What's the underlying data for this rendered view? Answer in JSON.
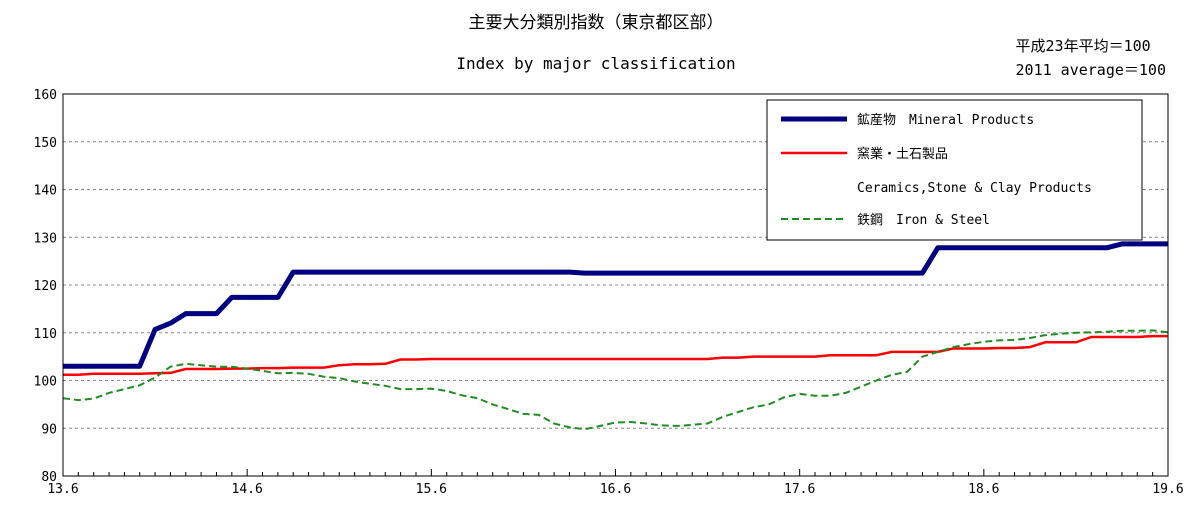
{
  "header": {
    "title_jp": "主要大分類別指数（東京都区部）",
    "title_en": "Index by major classification",
    "base_note_jp": "平成23年平均＝100",
    "base_note_en": "2011 average＝100"
  },
  "chart_data": {
    "type": "line",
    "title": "主要大分類別指数（東京都区部）",
    "subtitle": "Index by major classification",
    "x_ticks": [
      "13.6",
      "14.6",
      "15.6",
      "16.6",
      "17.6",
      "18.6",
      "19.6"
    ],
    "xlim": [
      "2013-06",
      "2019-06"
    ],
    "ylim": [
      80,
      160
    ],
    "y_ticks": [
      80,
      90,
      100,
      110,
      120,
      130,
      140,
      150,
      160
    ],
    "grid": "horizontal dashed",
    "legend_position": "top-right",
    "series": [
      {
        "name": "鉱産物　Mineral Products",
        "color": "#000080",
        "style": "solid-thick",
        "points": [
          [
            "2013-06",
            103.0
          ],
          [
            "2013-07",
            103.0
          ],
          [
            "2013-08",
            103.0
          ],
          [
            "2013-09",
            103.0
          ],
          [
            "2013-10",
            103.0
          ],
          [
            "2013-11",
            103.0
          ],
          [
            "2013-12",
            110.7
          ],
          [
            "2014-01",
            112.0
          ],
          [
            "2014-02",
            114.0
          ],
          [
            "2014-03",
            114.0
          ],
          [
            "2014-04",
            114.0
          ],
          [
            "2014-05",
            117.4
          ],
          [
            "2014-06",
            117.4
          ],
          [
            "2014-07",
            117.4
          ],
          [
            "2014-08",
            117.4
          ],
          [
            "2014-09",
            122.7
          ],
          [
            "2014-10",
            122.7
          ],
          [
            "2014-11",
            122.7
          ],
          [
            "2014-12",
            122.7
          ],
          [
            "2015-01",
            122.7
          ],
          [
            "2015-02",
            122.7
          ],
          [
            "2015-03",
            122.7
          ],
          [
            "2015-04",
            122.7
          ],
          [
            "2015-05",
            122.7
          ],
          [
            "2015-06",
            122.7
          ],
          [
            "2015-07",
            122.7
          ],
          [
            "2015-08",
            122.7
          ],
          [
            "2015-09",
            122.7
          ],
          [
            "2015-10",
            122.7
          ],
          [
            "2015-11",
            122.7
          ],
          [
            "2015-12",
            122.7
          ],
          [
            "2016-01",
            122.7
          ],
          [
            "2016-02",
            122.7
          ],
          [
            "2016-03",
            122.7
          ],
          [
            "2016-04",
            122.5
          ],
          [
            "2016-05",
            122.5
          ],
          [
            "2016-06",
            122.5
          ],
          [
            "2016-07",
            122.5
          ],
          [
            "2016-08",
            122.5
          ],
          [
            "2016-09",
            122.5
          ],
          [
            "2016-10",
            122.5
          ],
          [
            "2016-11",
            122.5
          ],
          [
            "2016-12",
            122.5
          ],
          [
            "2017-01",
            122.5
          ],
          [
            "2017-02",
            122.5
          ],
          [
            "2017-03",
            122.5
          ],
          [
            "2017-04",
            122.5
          ],
          [
            "2017-05",
            122.5
          ],
          [
            "2017-06",
            122.5
          ],
          [
            "2017-07",
            122.5
          ],
          [
            "2017-08",
            122.5
          ],
          [
            "2017-09",
            122.5
          ],
          [
            "2017-10",
            122.5
          ],
          [
            "2017-11",
            122.5
          ],
          [
            "2017-12",
            122.5
          ],
          [
            "2018-01",
            122.5
          ],
          [
            "2018-02",
            122.5
          ],
          [
            "2018-03",
            127.8
          ],
          [
            "2018-04",
            127.8
          ],
          [
            "2018-05",
            127.8
          ],
          [
            "2018-06",
            127.8
          ],
          [
            "2018-07",
            127.8
          ],
          [
            "2018-08",
            127.8
          ],
          [
            "2018-09",
            127.8
          ],
          [
            "2018-10",
            127.8
          ],
          [
            "2018-11",
            127.8
          ],
          [
            "2018-12",
            127.8
          ],
          [
            "2019-01",
            127.8
          ],
          [
            "2019-02",
            127.8
          ],
          [
            "2019-03",
            128.6
          ],
          [
            "2019-04",
            128.6
          ],
          [
            "2019-05",
            128.6
          ],
          [
            "2019-06",
            128.6
          ]
        ]
      },
      {
        "name": "窯業・土石製品",
        "name_en": "Ceramics,Stone & Clay Products",
        "color": "#ff0000",
        "style": "solid",
        "points": [
          [
            "2013-06",
            101.2
          ],
          [
            "2013-07",
            101.2
          ],
          [
            "2013-08",
            101.4
          ],
          [
            "2013-09",
            101.4
          ],
          [
            "2013-10",
            101.4
          ],
          [
            "2013-11",
            101.4
          ],
          [
            "2013-12",
            101.5
          ],
          [
            "2014-01",
            101.6
          ],
          [
            "2014-02",
            102.4
          ],
          [
            "2014-03",
            102.4
          ],
          [
            "2014-04",
            102.4
          ],
          [
            "2014-05",
            102.5
          ],
          [
            "2014-06",
            102.5
          ],
          [
            "2014-07",
            102.6
          ],
          [
            "2014-08",
            102.6
          ],
          [
            "2014-09",
            102.7
          ],
          [
            "2014-10",
            102.7
          ],
          [
            "2014-11",
            102.7
          ],
          [
            "2014-12",
            103.2
          ],
          [
            "2015-01",
            103.4
          ],
          [
            "2015-02",
            103.4
          ],
          [
            "2015-03",
            103.5
          ],
          [
            "2015-04",
            104.4
          ],
          [
            "2015-05",
            104.4
          ],
          [
            "2015-06",
            104.5
          ],
          [
            "2015-07",
            104.5
          ],
          [
            "2015-08",
            104.5
          ],
          [
            "2015-09",
            104.5
          ],
          [
            "2015-10",
            104.5
          ],
          [
            "2015-11",
            104.5
          ],
          [
            "2015-12",
            104.5
          ],
          [
            "2016-01",
            104.5
          ],
          [
            "2016-02",
            104.5
          ],
          [
            "2016-03",
            104.5
          ],
          [
            "2016-04",
            104.5
          ],
          [
            "2016-05",
            104.5
          ],
          [
            "2016-06",
            104.5
          ],
          [
            "2016-07",
            104.5
          ],
          [
            "2016-08",
            104.5
          ],
          [
            "2016-09",
            104.5
          ],
          [
            "2016-10",
            104.5
          ],
          [
            "2016-11",
            104.5
          ],
          [
            "2016-12",
            104.5
          ],
          [
            "2017-01",
            104.8
          ],
          [
            "2017-02",
            104.8
          ],
          [
            "2017-03",
            105.0
          ],
          [
            "2017-04",
            105.0
          ],
          [
            "2017-05",
            105.0
          ],
          [
            "2017-06",
            105.0
          ],
          [
            "2017-07",
            105.0
          ],
          [
            "2017-08",
            105.3
          ],
          [
            "2017-09",
            105.3
          ],
          [
            "2017-10",
            105.3
          ],
          [
            "2017-11",
            105.3
          ],
          [
            "2017-12",
            106.0
          ],
          [
            "2018-01",
            106.0
          ],
          [
            "2018-02",
            106.0
          ],
          [
            "2018-03",
            106.0
          ],
          [
            "2018-04",
            106.7
          ],
          [
            "2018-05",
            106.7
          ],
          [
            "2018-06",
            106.7
          ],
          [
            "2018-07",
            106.8
          ],
          [
            "2018-08",
            106.8
          ],
          [
            "2018-09",
            107.0
          ],
          [
            "2018-10",
            108.0
          ],
          [
            "2018-11",
            108.0
          ],
          [
            "2018-12",
            108.0
          ],
          [
            "2019-01",
            109.1
          ],
          [
            "2019-02",
            109.1
          ],
          [
            "2019-03",
            109.1
          ],
          [
            "2019-04",
            109.1
          ],
          [
            "2019-05",
            109.3
          ],
          [
            "2019-06",
            109.3
          ]
        ]
      },
      {
        "name": "鉄鋼　Iron & Steel",
        "color": "#228B22",
        "style": "dashed",
        "points": [
          [
            "2013-06",
            96.3
          ],
          [
            "2013-07",
            95.9
          ],
          [
            "2013-08",
            96.2
          ],
          [
            "2013-09",
            97.4
          ],
          [
            "2013-10",
            98.2
          ],
          [
            "2013-11",
            99.0
          ],
          [
            "2013-12",
            100.6
          ],
          [
            "2014-01",
            102.9
          ],
          [
            "2014-02",
            103.5
          ],
          [
            "2014-03",
            103.2
          ],
          [
            "2014-04",
            102.9
          ],
          [
            "2014-05",
            102.9
          ],
          [
            "2014-06",
            102.5
          ],
          [
            "2014-07",
            102.0
          ],
          [
            "2014-08",
            101.5
          ],
          [
            "2014-09",
            101.6
          ],
          [
            "2014-10",
            101.4
          ],
          [
            "2014-11",
            100.8
          ],
          [
            "2014-12",
            100.5
          ],
          [
            "2015-01",
            99.8
          ],
          [
            "2015-02",
            99.3
          ],
          [
            "2015-03",
            98.9
          ],
          [
            "2015-04",
            98.2
          ],
          [
            "2015-05",
            98.2
          ],
          [
            "2015-06",
            98.3
          ],
          [
            "2015-07",
            97.8
          ],
          [
            "2015-08",
            96.9
          ],
          [
            "2015-09",
            96.3
          ],
          [
            "2015-10",
            95.0
          ],
          [
            "2015-11",
            94.0
          ],
          [
            "2015-12",
            93.0
          ],
          [
            "2016-01",
            92.8
          ],
          [
            "2016-02",
            91.0
          ],
          [
            "2016-03",
            90.2
          ],
          [
            "2016-04",
            89.8
          ],
          [
            "2016-05",
            90.5
          ],
          [
            "2016-06",
            91.2
          ],
          [
            "2016-07",
            91.3
          ],
          [
            "2016-08",
            91.0
          ],
          [
            "2016-09",
            90.6
          ],
          [
            "2016-10",
            90.5
          ],
          [
            "2016-11",
            90.7
          ],
          [
            "2016-12",
            91.0
          ],
          [
            "2017-01",
            92.4
          ],
          [
            "2017-02",
            93.4
          ],
          [
            "2017-03",
            94.4
          ],
          [
            "2017-04",
            95.0
          ],
          [
            "2017-05",
            96.5
          ],
          [
            "2017-06",
            97.2
          ],
          [
            "2017-07",
            96.8
          ],
          [
            "2017-08",
            96.8
          ],
          [
            "2017-09",
            97.4
          ],
          [
            "2017-10",
            98.7
          ],
          [
            "2017-11",
            100.0
          ],
          [
            "2017-12",
            101.2
          ],
          [
            "2018-01",
            101.8
          ],
          [
            "2018-02",
            105.0
          ],
          [
            "2018-03",
            106.0
          ],
          [
            "2018-04",
            107.0
          ],
          [
            "2018-05",
            107.6
          ],
          [
            "2018-06",
            108.1
          ],
          [
            "2018-07",
            108.4
          ],
          [
            "2018-08",
            108.5
          ],
          [
            "2018-09",
            108.9
          ],
          [
            "2018-10",
            109.5
          ],
          [
            "2018-11",
            109.8
          ],
          [
            "2018-12",
            110.0
          ],
          [
            "2019-01",
            110.1
          ],
          [
            "2019-02",
            110.2
          ],
          [
            "2019-03",
            110.4
          ],
          [
            "2019-04",
            110.4
          ],
          [
            "2019-05",
            110.5
          ],
          [
            "2019-06",
            110.1
          ]
        ]
      }
    ]
  }
}
